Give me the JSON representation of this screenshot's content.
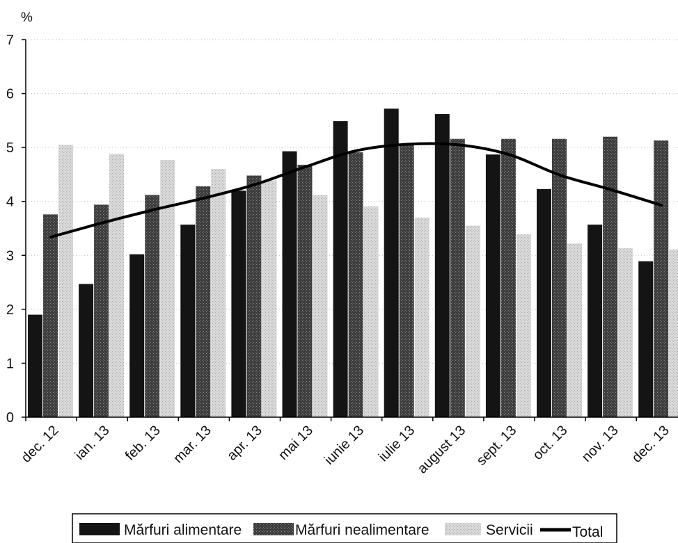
{
  "chart_data": {
    "type": "bar",
    "y_unit": "%",
    "ylim": [
      0,
      7
    ],
    "y_ticks": [
      0,
      1,
      2,
      3,
      4,
      5,
      6,
      7
    ],
    "grid": true,
    "legend_position": "bottom",
    "categories": [
      "dec. 12",
      "ian. 13",
      "feb. 13",
      "mar. 13",
      "apr. 13",
      "mai 13",
      "iunie 13",
      "iulie 13",
      "august 13",
      "sept. 13",
      "oct. 13",
      "nov. 13",
      "dec. 13"
    ],
    "series": [
      {
        "name": "Mărfuri alimentare",
        "kind": "bar",
        "color": "#111111",
        "values": [
          1.9,
          2.47,
          3.02,
          3.57,
          4.2,
          4.93,
          5.49,
          5.72,
          5.62,
          4.87,
          4.23,
          3.57,
          2.89
        ]
      },
      {
        "name": "Mărfuri nealimentare",
        "kind": "bar",
        "color": "#4a4a4a",
        "values": [
          3.76,
          3.94,
          4.12,
          4.28,
          4.48,
          4.68,
          4.91,
          5.07,
          5.16,
          5.16,
          5.16,
          5.2,
          5.13
        ]
      },
      {
        "name": "Servicii",
        "kind": "bar",
        "color": "#cfcfcf",
        "values": [
          5.05,
          4.88,
          4.77,
          4.6,
          4.39,
          4.12,
          3.91,
          3.7,
          3.55,
          3.39,
          3.22,
          3.13,
          3.11
        ]
      },
      {
        "name": "Total",
        "kind": "line",
        "color": "#000000",
        "values": [
          3.34,
          3.6,
          3.84,
          4.06,
          4.31,
          4.64,
          4.94,
          5.06,
          5.05,
          4.87,
          4.49,
          4.22,
          3.93
        ]
      }
    ]
  }
}
